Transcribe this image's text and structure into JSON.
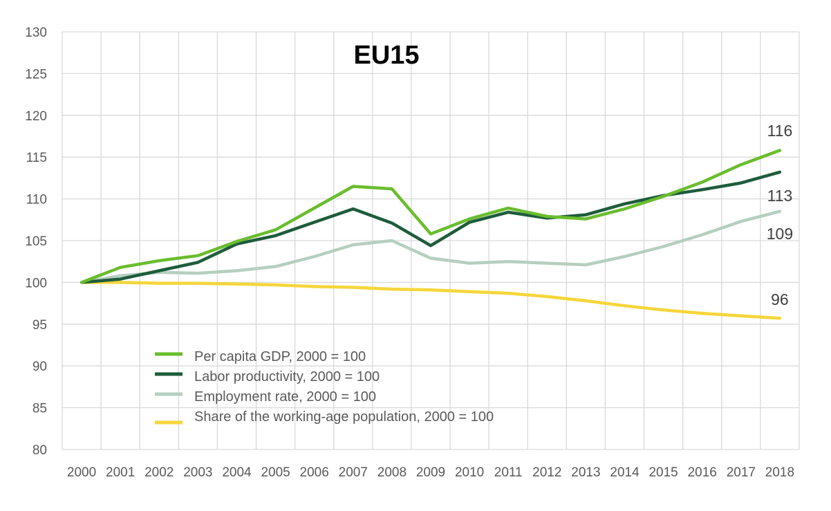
{
  "chart_data": {
    "type": "line",
    "title": "EU15",
    "xlabel": "",
    "ylabel": "",
    "ylim": [
      80,
      130
    ],
    "yticks": [
      "80",
      "85",
      "90",
      "95",
      "100",
      "105",
      "110",
      "115",
      "120",
      "125",
      "130"
    ],
    "categories": [
      "2000",
      "2001",
      "2002",
      "2003",
      "2004",
      "2005",
      "2006",
      "2007",
      "2008",
      "2009",
      "2010",
      "2011",
      "2012",
      "2013",
      "2014",
      "2015",
      "2016",
      "2017",
      "2018"
    ],
    "grid": true,
    "legend_position": "bottom-left",
    "series": [
      {
        "name": "Per capita GDP, 2000 = 100",
        "color": "#6ABD2E",
        "values": [
          100,
          101.8,
          102.6,
          103.2,
          104.9,
          106.3,
          108.9,
          111.5,
          111.2,
          105.8,
          107.6,
          108.9,
          107.9,
          107.6,
          108.8,
          110.3,
          112.0,
          114.1,
          115.8
        ],
        "end_label": "116"
      },
      {
        "name": "Labor productivity, 2000 = 100",
        "color": "#1E5C3C",
        "values": [
          100,
          100.4,
          101.4,
          102.4,
          104.6,
          105.6,
          107.2,
          108.8,
          107.1,
          104.4,
          107.2,
          108.4,
          107.7,
          108.1,
          109.4,
          110.4,
          111.1,
          111.9,
          113.2
        ],
        "end_label": "113"
      },
      {
        "name": "Employment rate, 2000 = 100",
        "color": "#B5CFC0",
        "values": [
          100,
          100.8,
          101.2,
          101.1,
          101.4,
          101.9,
          103.1,
          104.5,
          105.0,
          102.9,
          102.3,
          102.5,
          102.3,
          102.1,
          103.1,
          104.3,
          105.7,
          107.3,
          108.5
        ],
        "end_label": "109"
      },
      {
        "name": "Share of the working-age population, 2000 = 100",
        "color": "#F5D63A",
        "values": [
          100,
          100.0,
          99.9,
          99.9,
          99.8,
          99.7,
          99.5,
          99.4,
          99.2,
          99.1,
          98.9,
          98.7,
          98.3,
          97.8,
          97.2,
          96.7,
          96.3,
          96.0,
          95.7
        ],
        "end_label": "96"
      }
    ]
  }
}
